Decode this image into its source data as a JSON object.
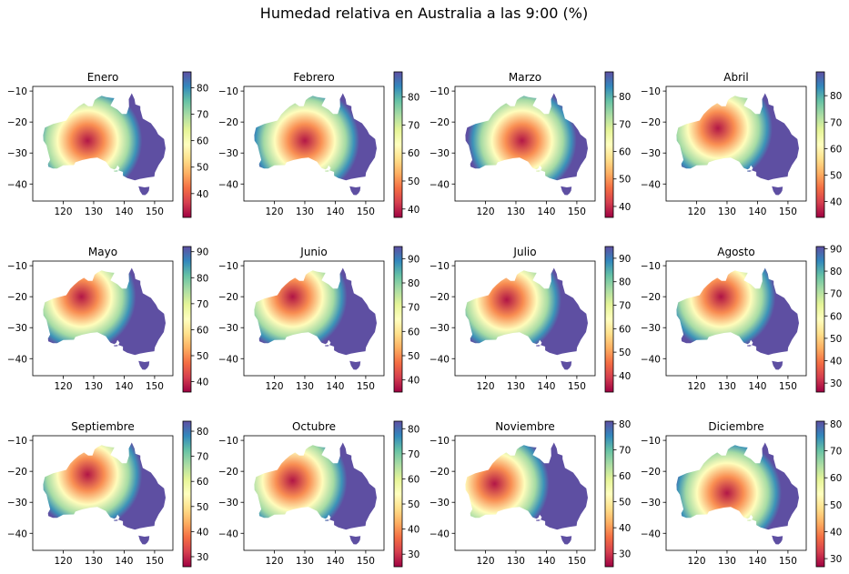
{
  "chart_data": {
    "type": "heatmap",
    "title": "Humedad relativa en Australia a las 9:00 (%)",
    "colormap": "Spectral",
    "grid": false,
    "xlim": [
      110,
      156
    ],
    "ylim": [
      -45.5,
      -8.5
    ],
    "xticks": [
      120,
      130,
      140,
      150
    ],
    "yticks": [
      -10,
      -20,
      -30,
      -40
    ],
    "panels": [
      {
        "month": "Enero",
        "cbar_range": [
          31,
          86
        ],
        "cbar_ticks": [
          40,
          50,
          60,
          70,
          80
        ],
        "dry_center": [
          128,
          -26
        ],
        "dry_value": 33
      },
      {
        "month": "Febrero",
        "cbar_range": [
          37,
          89
        ],
        "cbar_ticks": [
          40,
          50,
          60,
          70,
          80
        ],
        "dry_center": [
          130,
          -26
        ],
        "dry_value": 39
      },
      {
        "month": "Marzo",
        "cbar_range": [
          36,
          89
        ],
        "cbar_ticks": [
          40,
          50,
          60,
          70,
          80
        ],
        "dry_center": [
          132,
          -26
        ],
        "dry_value": 38
      },
      {
        "month": "Abril",
        "cbar_range": [
          34,
          89
        ],
        "cbar_ticks": [
          40,
          50,
          60,
          70,
          80
        ],
        "dry_center": [
          127,
          -22
        ],
        "dry_value": 36
      },
      {
        "month": "Mayo",
        "cbar_range": [
          36,
          92
        ],
        "cbar_ticks": [
          40,
          50,
          60,
          70,
          80,
          90
        ],
        "dry_center": [
          126,
          -20
        ],
        "dry_value": 38
      },
      {
        "month": "Junio",
        "cbar_range": [
          35,
          95
        ],
        "cbar_ticks": [
          40,
          50,
          60,
          70,
          80,
          90
        ],
        "dry_center": [
          126,
          -20
        ],
        "dry_value": 37
      },
      {
        "month": "Julio",
        "cbar_range": [
          33,
          95
        ],
        "cbar_ticks": [
          40,
          50,
          60,
          70,
          80,
          90
        ],
        "dry_center": [
          127,
          -21
        ],
        "dry_value": 35
      },
      {
        "month": "Agosto",
        "cbar_range": [
          26,
          91
        ],
        "cbar_ticks": [
          30,
          40,
          50,
          60,
          70,
          80,
          90
        ],
        "dry_center": [
          128,
          -20
        ],
        "dry_value": 28
      },
      {
        "month": "Septiembre",
        "cbar_range": [
          26,
          84
        ],
        "cbar_ticks": [
          30,
          40,
          50,
          60,
          70,
          80
        ],
        "dry_center": [
          128,
          -21
        ],
        "dry_value": 28
      },
      {
        "month": "Octubre",
        "cbar_range": [
          25,
          83
        ],
        "cbar_ticks": [
          30,
          40,
          50,
          60,
          70,
          80
        ],
        "dry_center": [
          126,
          -23
        ],
        "dry_value": 27
      },
      {
        "month": "Noviembre",
        "cbar_range": [
          25,
          81
        ],
        "cbar_ticks": [
          30,
          40,
          50,
          60,
          70,
          80
        ],
        "dry_center": [
          123,
          -24
        ],
        "dry_value": 27
      },
      {
        "month": "Diciembre",
        "cbar_range": [
          27,
          81
        ],
        "cbar_ticks": [
          30,
          40,
          50,
          60,
          70,
          80
        ],
        "dry_center": [
          130,
          -27
        ],
        "dry_value": 29
      }
    ]
  }
}
